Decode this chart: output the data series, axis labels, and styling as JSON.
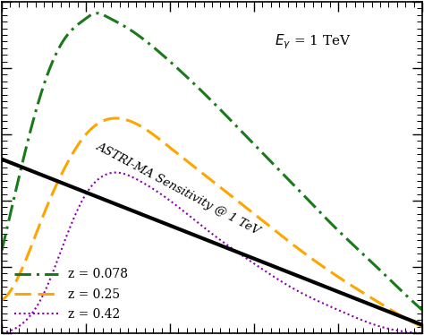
{
  "sensitivity_label": "ASTRI-MA Sensitivity @ 1 TeV",
  "legend_entries": [
    "z = 0.078",
    "z = 0.25",
    "z = 0.42"
  ],
  "line_colors": [
    "#1a7a1a",
    "#ffa500",
    "#8b00b0"
  ],
  "sensitivity_color": "black",
  "sensitivity_lw": 3.0,
  "background_color": "#ffffff",
  "xlim": [
    0.0,
    1.0
  ],
  "ylim": [
    0.0,
    1.0
  ]
}
